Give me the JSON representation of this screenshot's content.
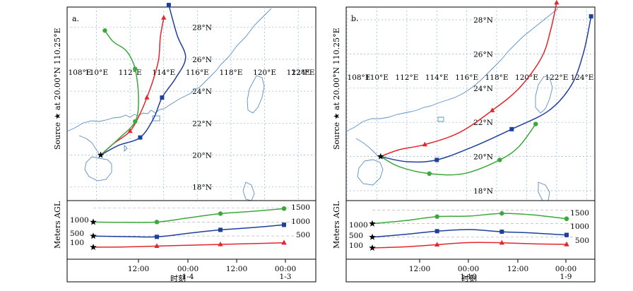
{
  "source_label": "Source ★ at 20.00°N 110.25°E",
  "y_axis_label": "Meters AGL",
  "x_axis_label": "时刻",
  "colors": {
    "red": "#e3262b",
    "blue": "#1f3f9c",
    "green": "#3aa83a",
    "coast": "#5b8fc7",
    "grid": "#8fb4d8"
  },
  "chart_data": [
    {
      "panel": "a.",
      "type": "line",
      "map": {
        "lon_labels": [
          "108°E",
          "110°E",
          "112°E",
          "114°E",
          "116°E",
          "118°E",
          "120°E",
          "122°E",
          "124°E"
        ],
        "lat_labels": [
          "18°N",
          "20°N",
          "22°N",
          "24°N",
          "26°N",
          "28°N"
        ],
        "source": {
          "lon": 110.25,
          "lat": 20.0
        }
      },
      "height_ticks_left": [
        "1000",
        "500",
        "100"
      ],
      "height_ticks_right": [
        "1500",
        "1000",
        "500"
      ],
      "time_ticks": [
        "12:00",
        "00:00",
        "12:00",
        "00:00"
      ],
      "date_labels": [
        "1-4",
        "1-3"
      ],
      "series": [
        {
          "name": "100 m",
          "color": "red",
          "marker": "triangle",
          "path": [
            [
              110.25,
              20.0
            ],
            [
              111.0,
              20.7
            ],
            [
              112.0,
              21.5
            ],
            [
              112.6,
              22.6
            ],
            [
              113.0,
              23.6
            ],
            [
              113.4,
              24.8
            ],
            [
              113.7,
              26.0
            ],
            [
              113.8,
              27.4
            ],
            [
              114.0,
              28.6
            ]
          ],
          "heights": [
            100,
            110,
            140,
            170,
            200,
            230,
            260
          ]
        },
        {
          "name": "500 m",
          "color": "blue",
          "marker": "square",
          "path": [
            [
              110.25,
              20.0
            ],
            [
              111.3,
              20.6
            ],
            [
              112.6,
              21.1
            ],
            [
              113.4,
              22.3
            ],
            [
              113.9,
              23.6
            ],
            [
              114.7,
              24.8
            ],
            [
              115.3,
              26.1
            ],
            [
              114.8,
              27.5
            ],
            [
              114.3,
              29.4
            ]
          ],
          "heights": [
            500,
            480,
            470,
            600,
            720,
            800,
            900
          ]
        },
        {
          "name": "1000 m",
          "color": "green",
          "marker": "circle",
          "path": [
            [
              110.25,
              20.0
            ],
            [
              111.3,
              21.0
            ],
            [
              112.3,
              22.1
            ],
            [
              112.5,
              23.5
            ],
            [
              112.3,
              25.4
            ],
            [
              111.8,
              26.5
            ],
            [
              111.0,
              27.1
            ],
            [
              110.5,
              27.8
            ]
          ],
          "heights": [
            1000,
            990,
            1000,
            1150,
            1300,
            1380,
            1480
          ]
        }
      ]
    },
    {
      "panel": "b.",
      "type": "line",
      "map": {
        "lon_labels": [
          "108°E",
          "110°E",
          "112°E",
          "114°E",
          "116°E",
          "118°E",
          "120°E",
          "122°E",
          "124°E"
        ],
        "lat_labels": [
          "18°N",
          "20°N",
          "22°N",
          "24°N",
          "26°N",
          "28°N"
        ],
        "source": {
          "lon": 110.25,
          "lat": 20.0
        }
      },
      "height_ticks_left": [
        "1000",
        "500",
        "100"
      ],
      "height_ticks_right": [
        "1500",
        "1000",
        "500"
      ],
      "time_ticks": [
        "12:00",
        "00:00",
        "12:00",
        "00:00"
      ],
      "date_labels": [
        "1-10",
        "1-9"
      ],
      "series": [
        {
          "name": "100 m",
          "color": "red",
          "marker": "triangle",
          "path": [
            [
              110.25,
              20.0
            ],
            [
              111.5,
              20.4
            ],
            [
              113.2,
              20.7
            ],
            [
              115.5,
              21.4
            ],
            [
              117.7,
              22.7
            ],
            [
              119.5,
              24.0
            ],
            [
              121.0,
              25.8
            ],
            [
              121.6,
              27.4
            ],
            [
              122.0,
              29.0
            ]
          ],
          "heights": [
            100,
            140,
            220,
            300,
            290,
            250,
            230
          ]
        },
        {
          "name": "500 m",
          "color": "blue",
          "marker": "square",
          "path": [
            [
              110.25,
              20.0
            ],
            [
              112.0,
              19.7
            ],
            [
              114.0,
              19.8
            ],
            [
              116.5,
              20.6
            ],
            [
              119.0,
              21.6
            ],
            [
              121.5,
              22.7
            ],
            [
              123.0,
              24.2
            ],
            [
              123.8,
              26.1
            ],
            [
              124.3,
              28.2
            ]
          ],
          "heights": [
            500,
            600,
            720,
            780,
            700,
            650,
            580
          ]
        },
        {
          "name": "1000 m",
          "color": "green",
          "marker": "circle",
          "path": [
            [
              110.25,
              20.0
            ],
            [
              111.5,
              19.4
            ],
            [
              113.5,
              19.0
            ],
            [
              115.8,
              19.0
            ],
            [
              118.2,
              19.8
            ],
            [
              119.5,
              20.6
            ],
            [
              120.6,
              21.9
            ]
          ],
          "heights": [
            1000,
            1110,
            1260,
            1280,
            1380,
            1320,
            1180
          ]
        }
      ]
    }
  ]
}
